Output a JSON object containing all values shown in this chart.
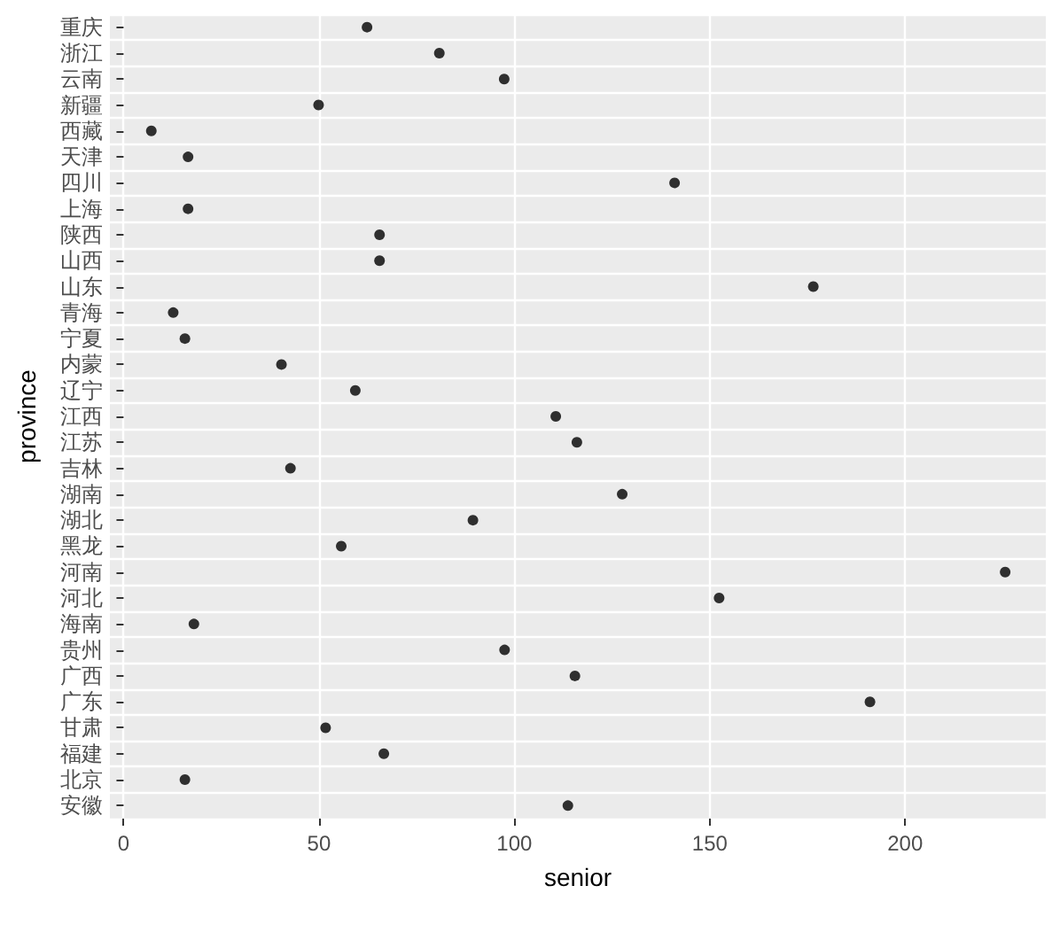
{
  "chart_data": {
    "type": "scatter",
    "xlabel": "senior",
    "ylabel": "province",
    "categories": [
      "重庆",
      "浙江",
      "云南",
      "新疆",
      "西藏",
      "天津",
      "四川",
      "上海",
      "陕西",
      "山西",
      "山东",
      "青海",
      "宁夏",
      "内蒙",
      "辽宁",
      "江西",
      "江苏",
      "吉林",
      "湖南",
      "湖北",
      "黑龙",
      "河南",
      "河北",
      "海南",
      "贵州",
      "广西",
      "广东",
      "甘肃",
      "福建",
      "北京",
      "安徽"
    ],
    "values": [
      62.3,
      80.8,
      97.4,
      49.9,
      7.1,
      16.5,
      141,
      16.5,
      65.5,
      65.5,
      176.5,
      12.7,
      15.7,
      40.4,
      59.3,
      110.6,
      116,
      42.7,
      127.6,
      89.4,
      55.7,
      225.6,
      152.4,
      18,
      97.5,
      115.5,
      191,
      51.7,
      66.6,
      15.7,
      113.7
    ],
    "color": "#000000",
    "orientation": "horizontal",
    "marker": "circle",
    "xlim": [
      -3.5,
      236
    ],
    "xticks": [
      0,
      50,
      100,
      150,
      200
    ],
    "grid": true
  }
}
